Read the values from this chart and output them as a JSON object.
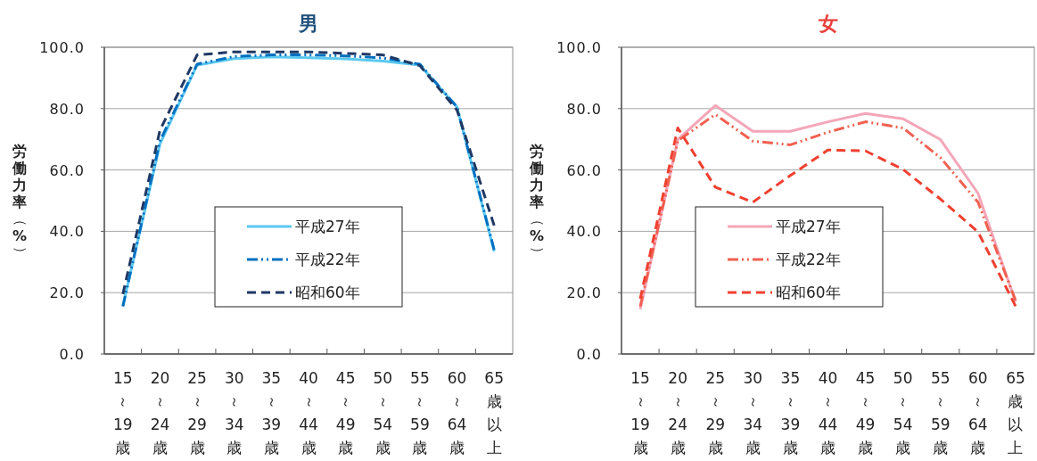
{
  "chart_data": [
    {
      "type": "line",
      "title": "男",
      "ylabel": "労働力率（%）",
      "categories": [
        "15～19歳",
        "20～24歳",
        "25～29歳",
        "30～34歳",
        "35～39歳",
        "40～44歳",
        "45～49歳",
        "50～54歳",
        "55～59歳",
        "60～64歳",
        "65歳以上"
      ],
      "ylim": [
        0,
        100
      ],
      "yticks": [
        {
          "value": 0,
          "label": "0.0"
        },
        {
          "value": 20,
          "label": "20.0"
        },
        {
          "value": 40,
          "label": "40.0"
        },
        {
          "value": 60,
          "label": "60.0"
        },
        {
          "value": 80,
          "label": "80.0"
        },
        {
          "value": 100,
          "label": "100.0"
        }
      ],
      "grid": "y",
      "legend": "bottom",
      "series": [
        {
          "name": "平成27年",
          "color": "#5bc8f0",
          "line_style": "solid",
          "values": [
            15.7,
            68.5,
            94.2,
            96.3,
            96.9,
            96.6,
            96.2,
            95.5,
            94.2,
            80.5,
            33.5
          ]
        },
        {
          "name": "平成22年",
          "color": "#0070c0",
          "line_style": "dashdot",
          "values": [
            15.5,
            69.5,
            94.5,
            97.0,
            97.5,
            97.5,
            97.2,
            96.5,
            94.5,
            80.5,
            34.0
          ]
        },
        {
          "name": "昭和60年",
          "color": "#1f3864",
          "line_style": "dashed",
          "values": [
            19.5,
            73.0,
            97.5,
            98.5,
            98.5,
            98.5,
            98.0,
            97.5,
            94.0,
            79.5,
            41.9
          ]
        }
      ]
    },
    {
      "type": "line",
      "title": "女",
      "ylabel": "労働力率（%）",
      "categories": [
        "15～19歳",
        "20～24歳",
        "25～29歳",
        "30～34歳",
        "35～39歳",
        "40～44歳",
        "45～49歳",
        "50～54歳",
        "55～59歳",
        "60～64歳",
        "65歳以上"
      ],
      "ylim": [
        0,
        100
      ],
      "yticks": [
        {
          "value": 0,
          "label": "0.0"
        },
        {
          "value": 20,
          "label": "20.0"
        },
        {
          "value": 40,
          "label": "40.0"
        },
        {
          "value": 60,
          "label": "60.0"
        },
        {
          "value": 80,
          "label": "80.0"
        },
        {
          "value": 100,
          "label": "100.0"
        }
      ],
      "grid": "y",
      "legend": "bottom left",
      "series": [
        {
          "name": "平成27年",
          "color": "#f4a6b8",
          "line_style": "solid",
          "values": [
            14.6,
            69.9,
            81.0,
            72.6,
            72.6,
            75.7,
            78.4,
            76.7,
            69.9,
            52.4,
            17.0
          ]
        },
        {
          "name": "平成22年",
          "color": "#f06050",
          "line_style": "dashdot",
          "values": [
            15.5,
            69.5,
            78.1,
            69.4,
            68.2,
            72.3,
            75.7,
            73.7,
            64.0,
            49.5,
            17.5
          ]
        },
        {
          "name": "昭和60年",
          "color": "#f04030",
          "line_style": "dashed",
          "values": [
            18.0,
            73.7,
            54.4,
            49.5,
            58.2,
            66.5,
            66.2,
            60.2,
            50.5,
            39.8,
            15.6
          ]
        }
      ]
    }
  ]
}
